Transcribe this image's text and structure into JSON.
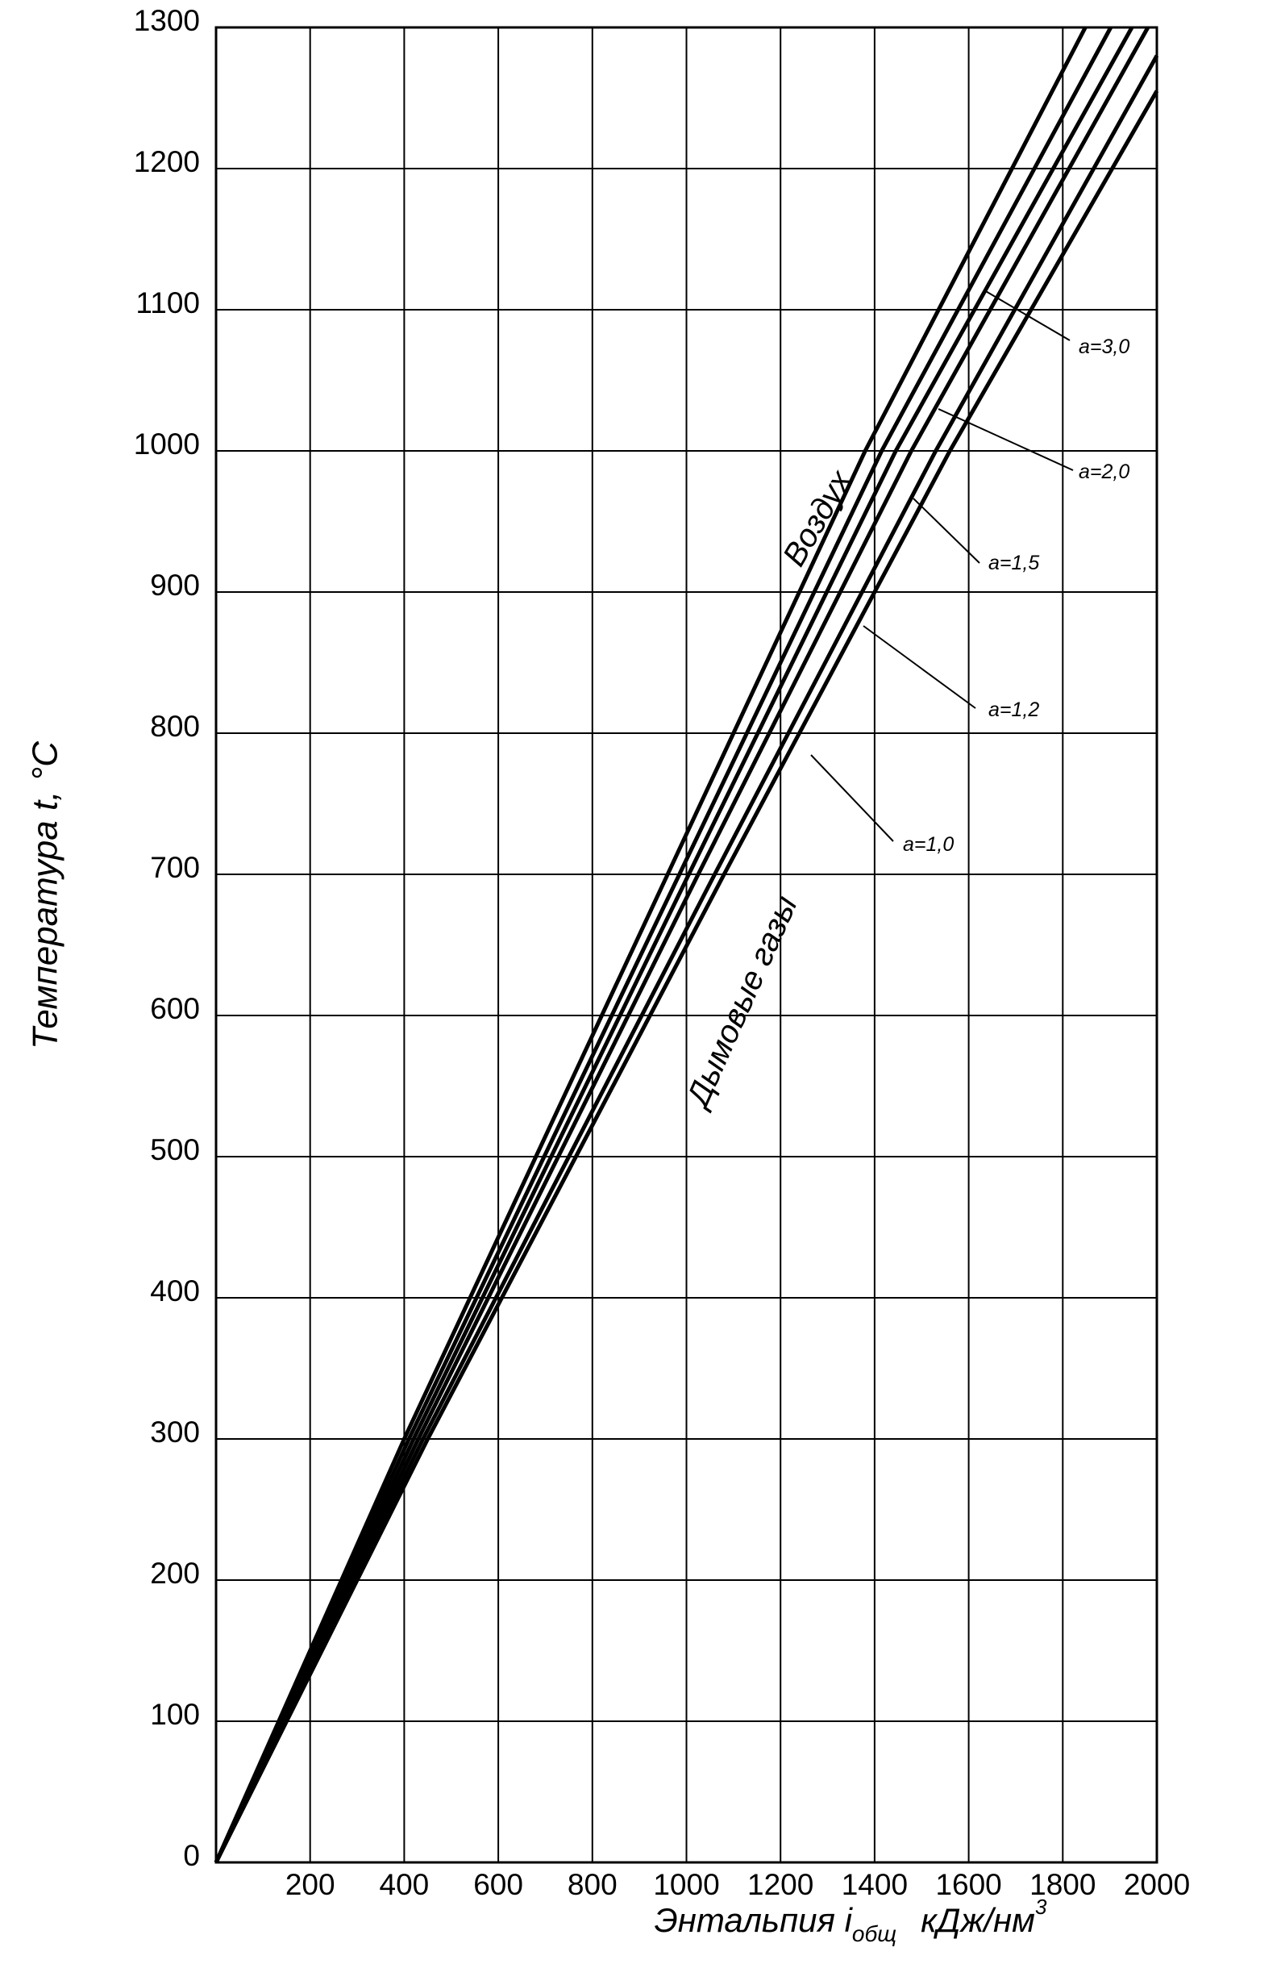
{
  "chart_data": {
    "type": "line",
    "ylabel": "Температура t, °C",
    "xlabel": {
      "text": "Энтальпия i",
      "sub": "общ",
      "unit": "кДж/нм",
      "sup": "3"
    },
    "xlim": [
      0,
      2000
    ],
    "xticks": [
      200,
      400,
      600,
      800,
      1000,
      1200,
      1400,
      1600,
      1800,
      2000
    ],
    "ylim": [
      0,
      1300
    ],
    "yticks": [
      0,
      100,
      200,
      300,
      400,
      500,
      600,
      700,
      800,
      900,
      1000,
      1100,
      1200,
      1300
    ],
    "grid": true,
    "series": [
      {
        "name": "Воздух",
        "color": "#000000",
        "x": [
          0,
          400,
          960,
          1380,
          1848
        ],
        "values": [
          0,
          300,
          700,
          1000,
          1300
        ]
      },
      {
        "name": "a=3,0",
        "color": "#000000",
        "x": [
          0,
          410,
          985,
          1415,
          1902
        ],
        "values": [
          0,
          300,
          700,
          1000,
          1300
        ]
      },
      {
        "name": "a=2,0",
        "color": "#000000",
        "x": [
          0,
          420,
          1005,
          1445,
          1947
        ],
        "values": [
          0,
          300,
          700,
          1000,
          1300
        ]
      },
      {
        "name": "a=1,5",
        "color": "#000000",
        "x": [
          0,
          430,
          1025,
          1478,
          1981
        ],
        "values": [
          0,
          300,
          700,
          1000,
          1300
        ]
      },
      {
        "name": "a=1,2",
        "color": "#000000",
        "x": [
          0,
          440,
          1060,
          1530,
          2000
        ],
        "values": [
          0,
          300,
          700,
          1000,
          1280
        ]
      },
      {
        "name": "a=1,0",
        "color": "#000000",
        "x": [
          0,
          450,
          1080,
          1560,
          2000
        ],
        "values": [
          0,
          300,
          700,
          1000,
          1255
        ]
      }
    ],
    "annotations": [
      "Дымовые газы"
    ]
  }
}
